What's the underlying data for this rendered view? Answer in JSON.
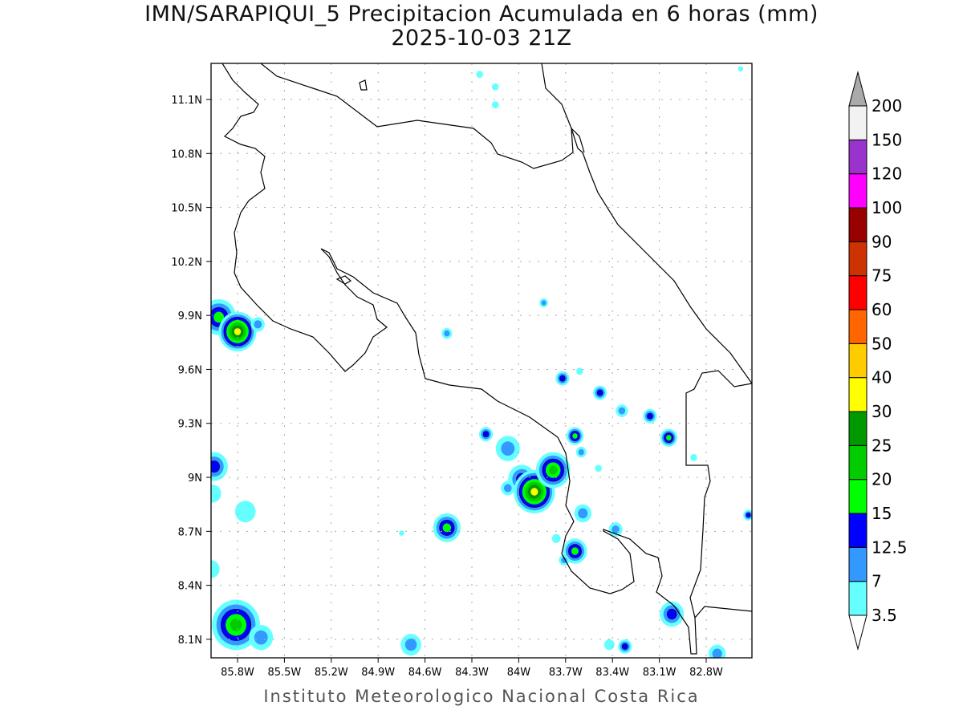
{
  "title_line1": "IMN/SARAPIQUI_5 Precipitacion Acumulada en 6 horas (mm)",
  "title_line2": "2025-10-03 21Z",
  "footer": "Instituto Meteorologico Nacional Costa Rica",
  "chart_data": {
    "type": "heatmap",
    "map_extent": {
      "lon": [
        -85.97,
        -82.51
      ],
      "lat": [
        8.0,
        11.3
      ]
    },
    "x_ticks": [
      {
        "lon": -85.8,
        "label": "85.8W"
      },
      {
        "lon": -85.5,
        "label": "85.5W"
      },
      {
        "lon": -85.2,
        "label": "85.2W"
      },
      {
        "lon": -84.9,
        "label": "84.9W"
      },
      {
        "lon": -84.6,
        "label": "84.6W"
      },
      {
        "lon": -84.3,
        "label": "84.3W"
      },
      {
        "lon": -84.0,
        "label": "84W"
      },
      {
        "lon": -83.7,
        "label": "83.7W"
      },
      {
        "lon": -83.4,
        "label": "83.4W"
      },
      {
        "lon": -83.1,
        "label": "83.1W"
      },
      {
        "lon": -82.8,
        "label": "82.8W"
      }
    ],
    "y_ticks": [
      {
        "lat": 11.1,
        "label": "11.1N"
      },
      {
        "lat": 10.8,
        "label": "10.8N"
      },
      {
        "lat": 10.5,
        "label": "10.5N"
      },
      {
        "lat": 10.2,
        "label": "10.2N"
      },
      {
        "lat": 9.9,
        "label": "9.9N"
      },
      {
        "lat": 9.6,
        "label": "9.6N"
      },
      {
        "lat": 9.3,
        "label": "9.3N"
      },
      {
        "lat": 9.0,
        "label": "9N"
      },
      {
        "lat": 8.7,
        "label": "8.7N"
      },
      {
        "lat": 8.4,
        "label": "8.4N"
      },
      {
        "lat": 8.1,
        "label": "8.1N"
      }
    ],
    "grid": true,
    "colorbar": {
      "labels": [
        "3.5",
        "7",
        "12.5",
        "15",
        "20",
        "25",
        "30",
        "40",
        "50",
        "60",
        "75",
        "90",
        "100",
        "120",
        "150",
        "200"
      ],
      "colors": [
        "#66ffff",
        "#3399ff",
        "#0000ff",
        "#00ff00",
        "#00cc00",
        "#009900",
        "#ffff00",
        "#ffcc00",
        "#ff6600",
        "#ff0000",
        "#cc3300",
        "#990000",
        "#ff00ff",
        "#9933cc",
        "#f2f2f2"
      ],
      "over_color": "#aaaaaa",
      "under_color": "#ffffff",
      "placement": "right"
    },
    "cells": [
      {
        "lon": -85.92,
        "lat": 9.89,
        "level": 3,
        "r": 0.1
      },
      {
        "lon": -85.8,
        "lat": 9.81,
        "level": 6,
        "r": 0.11
      },
      {
        "lon": -85.67,
        "lat": 9.85,
        "level": 1,
        "r": 0.04
      },
      {
        "lon": -85.95,
        "lat": 9.06,
        "level": 2,
        "r": 0.08
      },
      {
        "lon": -85.96,
        "lat": 8.91,
        "level": 0,
        "r": 0.05
      },
      {
        "lon": -85.75,
        "lat": 8.81,
        "level": 0,
        "r": 0.06
      },
      {
        "lon": -85.81,
        "lat": 8.18,
        "level": 4,
        "r": 0.14
      },
      {
        "lon": -85.65,
        "lat": 8.11,
        "level": 1,
        "r": 0.07
      },
      {
        "lon": -85.97,
        "lat": 8.49,
        "level": 0,
        "r": 0.05
      },
      {
        "lon": -84.69,
        "lat": 8.07,
        "level": 1,
        "r": 0.06
      },
      {
        "lon": -84.46,
        "lat": 8.72,
        "level": 3,
        "r": 0.08
      },
      {
        "lon": -84.46,
        "lat": 9.8,
        "level": 1,
        "r": 0.03
      },
      {
        "lon": -84.75,
        "lat": 8.69,
        "level": 0,
        "r": 0.015
      },
      {
        "lon": -84.25,
        "lat": 11.24,
        "level": 0,
        "r": 0.02
      },
      {
        "lon": -84.15,
        "lat": 11.17,
        "level": 0,
        "r": 0.02
      },
      {
        "lon": -84.15,
        "lat": 11.07,
        "level": 0,
        "r": 0.02
      },
      {
        "lon": -83.84,
        "lat": 9.97,
        "level": 1,
        "r": 0.025
      },
      {
        "lon": -83.72,
        "lat": 9.55,
        "level": 2,
        "r": 0.04
      },
      {
        "lon": -83.61,
        "lat": 9.59,
        "level": 0,
        "r": 0.02
      },
      {
        "lon": -83.48,
        "lat": 9.47,
        "level": 2,
        "r": 0.04
      },
      {
        "lon": -83.34,
        "lat": 9.37,
        "level": 1,
        "r": 0.035
      },
      {
        "lon": -83.16,
        "lat": 9.34,
        "level": 2,
        "r": 0.04
      },
      {
        "lon": -83.04,
        "lat": 9.22,
        "level": 3,
        "r": 0.05
      },
      {
        "lon": -82.88,
        "lat": 9.11,
        "level": 0,
        "r": 0.02
      },
      {
        "lon": -84.21,
        "lat": 9.24,
        "level": 2,
        "r": 0.04
      },
      {
        "lon": -84.07,
        "lat": 9.16,
        "level": 1,
        "r": 0.07
      },
      {
        "lon": -83.98,
        "lat": 8.99,
        "level": 2,
        "r": 0.08
      },
      {
        "lon": -84.07,
        "lat": 8.94,
        "level": 1,
        "r": 0.04
      },
      {
        "lon": -83.9,
        "lat": 8.92,
        "level": 6,
        "r": 0.12
      },
      {
        "lon": -83.78,
        "lat": 9.04,
        "level": 4,
        "r": 0.1
      },
      {
        "lon": -83.64,
        "lat": 9.23,
        "level": 3,
        "r": 0.05
      },
      {
        "lon": -83.6,
        "lat": 9.14,
        "level": 1,
        "r": 0.03
      },
      {
        "lon": -83.49,
        "lat": 9.05,
        "level": 0,
        "r": 0.02
      },
      {
        "lon": -83.59,
        "lat": 8.8,
        "level": 1,
        "r": 0.05
      },
      {
        "lon": -83.76,
        "lat": 8.66,
        "level": 0,
        "r": 0.025
      },
      {
        "lon": -83.64,
        "lat": 8.59,
        "level": 3,
        "r": 0.07
      },
      {
        "lon": -83.71,
        "lat": 8.54,
        "level": 1,
        "r": 0.03
      },
      {
        "lon": -83.38,
        "lat": 8.71,
        "level": 1,
        "r": 0.04
      },
      {
        "lon": -83.32,
        "lat": 8.06,
        "level": 2,
        "r": 0.04
      },
      {
        "lon": -83.42,
        "lat": 8.07,
        "level": 0,
        "r": 0.03
      },
      {
        "lon": -83.02,
        "lat": 8.24,
        "level": 2,
        "r": 0.07
      },
      {
        "lon": -82.73,
        "lat": 8.02,
        "level": 1,
        "r": 0.05
      },
      {
        "lon": -82.53,
        "lat": 8.79,
        "level": 2,
        "r": 0.03
      },
      {
        "lon": -82.58,
        "lat": 11.27,
        "level": 0,
        "r": 0.015
      }
    ]
  }
}
